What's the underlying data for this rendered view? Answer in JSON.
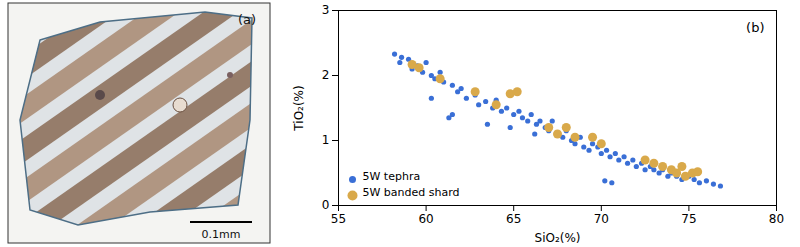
{
  "image_panel": {
    "label": "(a)",
    "scale_bar_label": "0.1mm"
  },
  "chart_data": {
    "type": "scatter",
    "title": "(b)",
    "x_label": "SiO₂(%)",
    "y_label": "TiO₂(%)",
    "xlim": [
      55,
      80
    ],
    "xticks": [
      55,
      60,
      65,
      70,
      75,
      80
    ],
    "ylim": [
      0,
      3
    ],
    "yticks": [
      0,
      1,
      2,
      3
    ],
    "grid": false,
    "legend": "lower left",
    "series": [
      {
        "name": "5W tephra",
        "color": "#3a6fd6",
        "marker": "circle",
        "x": [
          58.2,
          58.6,
          58.5,
          59.0,
          59.2,
          59.5,
          59.8,
          60.0,
          60.3,
          60.5,
          60.8,
          61.0,
          60.3,
          61.5,
          61.8,
          62.0,
          61.5,
          61.3,
          62.3,
          62.8,
          63.0,
          63.4,
          63.8,
          64.0,
          64.3,
          64.6,
          65.0,
          65.3,
          65.5,
          65.8,
          66.0,
          66.3,
          66.5,
          66.8,
          67.0,
          67.2,
          67.5,
          67.8,
          68.0,
          68.3,
          68.5,
          68.8,
          69.0,
          69.3,
          69.5,
          69.8,
          70.0,
          70.3,
          70.5,
          70.2,
          70.6,
          70.8,
          71.0,
          71.3,
          71.5,
          71.8,
          72.0,
          72.3,
          72.5,
          72.8,
          73.0,
          73.3,
          73.5,
          73.8,
          74.0,
          74.3,
          74.6,
          75.0,
          75.3,
          75.6,
          76.0,
          76.4,
          76.8,
          63.5,
          64.8,
          66.2
        ],
        "values": [
          2.33,
          2.28,
          2.2,
          2.25,
          2.1,
          2.15,
          2.05,
          2.2,
          2.0,
          1.95,
          2.05,
          1.9,
          1.65,
          1.85,
          1.75,
          1.8,
          1.4,
          1.35,
          1.65,
          1.7,
          1.55,
          1.6,
          1.5,
          1.62,
          1.45,
          1.5,
          1.4,
          1.45,
          1.35,
          1.3,
          1.4,
          1.25,
          1.3,
          1.2,
          1.15,
          1.3,
          1.1,
          1.05,
          1.15,
          1.0,
          0.95,
          1.05,
          0.9,
          0.85,
          0.95,
          0.9,
          0.8,
          0.85,
          0.75,
          0.38,
          0.35,
          0.8,
          0.7,
          0.75,
          0.65,
          0.7,
          0.6,
          0.65,
          0.55,
          0.6,
          0.55,
          0.5,
          0.55,
          0.45,
          0.5,
          0.45,
          0.4,
          0.45,
          0.4,
          0.35,
          0.38,
          0.33,
          0.3,
          1.25,
          1.2,
          1.1
        ]
      },
      {
        "name": "5W banded shard",
        "color": "#d9a94a",
        "marker": "circle",
        "x": [
          59.2,
          59.6,
          60.8,
          62.8,
          64.0,
          64.8,
          65.2,
          67.0,
          67.5,
          68.0,
          68.5,
          69.5,
          70.0,
          72.5,
          73.0,
          73.5,
          74.0,
          74.3,
          74.6,
          74.8,
          75.2,
          75.5
        ],
        "values": [
          2.17,
          2.12,
          1.95,
          1.75,
          1.55,
          1.72,
          1.75,
          1.2,
          1.1,
          1.2,
          1.05,
          1.05,
          0.95,
          0.7,
          0.65,
          0.6,
          0.55,
          0.5,
          0.6,
          0.45,
          0.5,
          0.52
        ]
      }
    ]
  }
}
